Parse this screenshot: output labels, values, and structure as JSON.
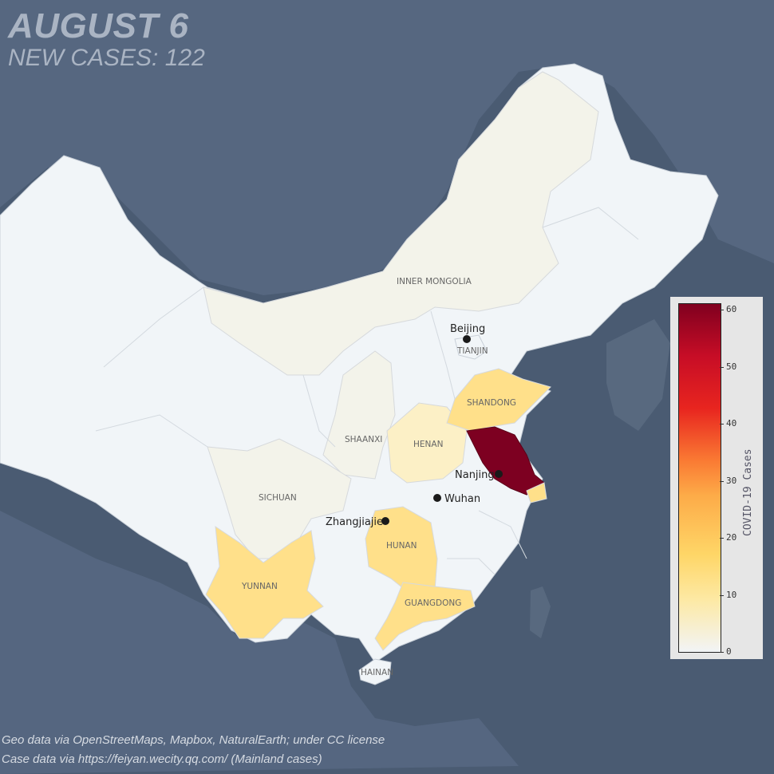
{
  "header": {
    "date": "AUGUST 6",
    "new_cases": "NEW CASES: 122"
  },
  "credits": {
    "geo": "Geo data via OpenStreetMaps, Mapbox, NaturalEarth; under CC license",
    "cases": "Case data via https://feiyan.wecity.qq.com/ (Mainland cases)"
  },
  "colors": {
    "ocean": "#4a5b72",
    "land_other": "#5a6a7f",
    "china_base": "#f1f5f8",
    "very_low": "#f3f3ea",
    "low": "#fcf0c6",
    "mid": "#ffe08a",
    "high": "#7d0021"
  },
  "provinces": {
    "inner_mongolia": "INNER MONGOLIA",
    "tianjin": "TIANJIN",
    "shandong": "SHANDONG",
    "shaanxi": "SHAANXI",
    "henan": "HENAN",
    "sichuan": "SICHUAN",
    "hunan": "HUNAN",
    "yunnan": "YUNNAN",
    "guangdong": "GUANGDONG",
    "hainan": "HAINAN"
  },
  "cities": {
    "beijing": "Beijing",
    "nanjing": "Nanjing",
    "wuhan": "Wuhan",
    "zhangjiajie": "Zhangjiajie"
  },
  "legend": {
    "title": "COVID-19 Cases",
    "ticks": [
      "60",
      "50",
      "40",
      "30",
      "20",
      "10",
      "0"
    ],
    "min": 0,
    "max": 61
  }
}
